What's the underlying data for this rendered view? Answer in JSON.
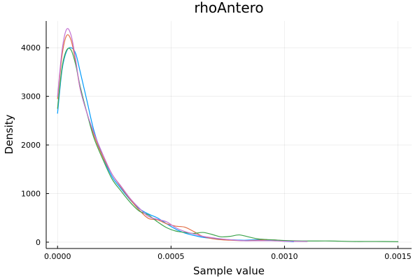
{
  "chart_data": {
    "type": "line",
    "title": "rhoAntero",
    "xlabel": "Sample value",
    "ylabel": "Density",
    "xlim": [
      -5e-05,
      0.00156
    ],
    "ylim": [
      -130,
      4550
    ],
    "grid": true,
    "legend": "none",
    "x_ticks": [
      0.0,
      0.0005,
      0.001,
      0.0015
    ],
    "x_tick_labels": [
      "0.0000",
      "0.0005",
      "0.0010",
      "0.0015"
    ],
    "y_ticks": [
      0,
      1000,
      2000,
      3000,
      4000
    ],
    "y_tick_labels": [
      "0",
      "1000",
      "2000",
      "3000",
      "4000"
    ],
    "series": [
      {
        "color": "#009AFA",
        "points": [
          [
            0.0,
            2650
          ],
          [
            2e-05,
            3550
          ],
          [
            4e-05,
            3930
          ],
          [
            6e-05,
            4000
          ],
          [
            8e-05,
            3880
          ],
          [
            0.0001,
            3500
          ],
          [
            0.00013,
            2900
          ],
          [
            0.00016,
            2300
          ],
          [
            0.0002,
            1750
          ],
          [
            0.00024,
            1350
          ],
          [
            0.00028,
            1100
          ],
          [
            0.00032,
            870
          ],
          [
            0.00036,
            690
          ],
          [
            0.0004,
            580
          ],
          [
            0.00044,
            500
          ],
          [
            0.00048,
            380
          ],
          [
            0.00052,
            270
          ],
          [
            0.00056,
            190
          ],
          [
            0.0006,
            140
          ],
          [
            0.00064,
            100
          ],
          [
            0.0007,
            70
          ],
          [
            0.00076,
            50
          ],
          [
            0.00082,
            40
          ],
          [
            0.00088,
            50
          ],
          [
            0.00094,
            40
          ],
          [
            0.001,
            20
          ],
          [
            0.00104,
            10
          ]
        ]
      },
      {
        "color": "#E26F46",
        "points": [
          [
            0.0,
            2950
          ],
          [
            2e-05,
            3850
          ],
          [
            4e-05,
            4250
          ],
          [
            6e-05,
            4150
          ],
          [
            8e-05,
            3700
          ],
          [
            0.0001,
            3150
          ],
          [
            0.00013,
            2650
          ],
          [
            0.00016,
            2200
          ],
          [
            0.0002,
            1750
          ],
          [
            0.00024,
            1400
          ],
          [
            0.00028,
            1130
          ],
          [
            0.00032,
            880
          ],
          [
            0.00036,
            660
          ],
          [
            0.0004,
            490
          ],
          [
            0.00044,
            460
          ],
          [
            0.00048,
            380
          ],
          [
            0.00052,
            330
          ],
          [
            0.00056,
            310
          ],
          [
            0.0006,
            220
          ],
          [
            0.00064,
            120
          ],
          [
            0.0007,
            60
          ],
          [
            0.00076,
            40
          ],
          [
            0.00082,
            30
          ],
          [
            0.00088,
            40
          ],
          [
            0.00094,
            50
          ],
          [
            0.001,
            30
          ],
          [
            0.00105,
            20
          ]
        ]
      },
      {
        "color": "#3DA44D",
        "points": [
          [
            0.0,
            2750
          ],
          [
            2e-05,
            3600
          ],
          [
            4e-05,
            3950
          ],
          [
            6e-05,
            3950
          ],
          [
            8e-05,
            3650
          ],
          [
            0.0001,
            3200
          ],
          [
            0.00013,
            2650
          ],
          [
            0.00016,
            2150
          ],
          [
            0.0002,
            1700
          ],
          [
            0.00024,
            1300
          ],
          [
            0.00028,
            1050
          ],
          [
            0.00032,
            820
          ],
          [
            0.00036,
            640
          ],
          [
            0.0004,
            560
          ],
          [
            0.00044,
            420
          ],
          [
            0.00048,
            300
          ],
          [
            0.00052,
            230
          ],
          [
            0.00056,
            200
          ],
          [
            0.0006,
            180
          ],
          [
            0.00064,
            200
          ],
          [
            0.00068,
            160
          ],
          [
            0.00072,
            110
          ],
          [
            0.00076,
            120
          ],
          [
            0.0008,
            150
          ],
          [
            0.00084,
            110
          ],
          [
            0.00088,
            70
          ],
          [
            0.00092,
            55
          ],
          [
            0.00096,
            45
          ],
          [
            0.001,
            35
          ],
          [
            0.0011,
            25
          ],
          [
            0.0012,
            25
          ],
          [
            0.0013,
            15
          ],
          [
            0.0014,
            15
          ],
          [
            0.0015,
            10
          ]
        ]
      },
      {
        "color": "#C371D2",
        "points": [
          [
            0.0,
            3000
          ],
          [
            2e-05,
            3950
          ],
          [
            4e-05,
            4380
          ],
          [
            6e-05,
            4250
          ],
          [
            8e-05,
            3750
          ],
          [
            0.0001,
            3150
          ],
          [
            0.00013,
            2650
          ],
          [
            0.00016,
            2250
          ],
          [
            0.0002,
            1800
          ],
          [
            0.00024,
            1400
          ],
          [
            0.00028,
            1150
          ],
          [
            0.00032,
            900
          ],
          [
            0.00036,
            700
          ],
          [
            0.0004,
            530
          ],
          [
            0.00044,
            470
          ],
          [
            0.00048,
            420
          ],
          [
            0.00052,
            300
          ],
          [
            0.00056,
            220
          ],
          [
            0.0006,
            170
          ],
          [
            0.00064,
            120
          ],
          [
            0.0007,
            80
          ],
          [
            0.00076,
            50
          ],
          [
            0.00082,
            30
          ],
          [
            0.00088,
            30
          ],
          [
            0.00094,
            30
          ],
          [
            0.001,
            20
          ],
          [
            0.0011,
            15
          ]
        ]
      }
    ]
  }
}
